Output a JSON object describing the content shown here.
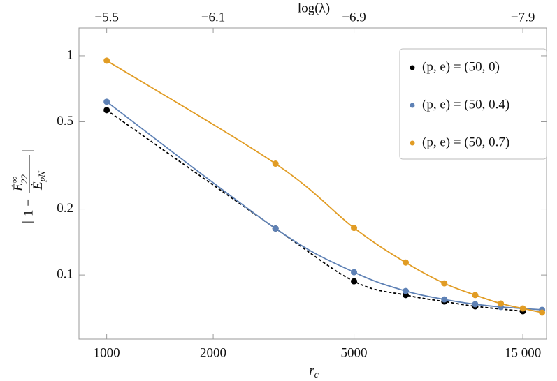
{
  "chart_data": {
    "type": "line",
    "log_x": true,
    "log_y": true,
    "title_top": "log(λ)",
    "xlabel": {
      "base": "r",
      "sub": "c"
    },
    "ylabel": {
      "prefix": "1 −",
      "num_base": "Ė",
      "num_sup": "∞",
      "num_sub": "22",
      "den_base": "Ė",
      "den_sub": "pN"
    },
    "xlim": [
      835,
      17500
    ],
    "ylim": [
      0.051,
      1.34
    ],
    "xticks": [
      1000,
      2000,
      5000,
      {
        "value": 15000,
        "label": "15 000"
      }
    ],
    "x2ticks": [
      {
        "value": 1000,
        "label": "−5.5"
      },
      {
        "value": 2000,
        "label": "−6.1"
      },
      {
        "value": 5000,
        "label": "−6.9"
      },
      {
        "value": 15000,
        "label": "−7.9"
      }
    ],
    "yticks": [
      0.1,
      0.2,
      0.5,
      1
    ],
    "legend": "upper right",
    "series": [
      {
        "name": "(p, e) = (50, 0)",
        "color": "#000000",
        "dashed": true,
        "x": [
          1000,
          3000,
          5000,
          7000,
          9000,
          11000,
          15000
        ],
        "values": [
          0.565,
          0.163,
          0.0936,
          0.081,
          0.0757,
          0.072,
          0.0684
        ]
      },
      {
        "name": "(p, e) = (50, 0.4)",
        "color": "#5e81b5",
        "dashed": false,
        "x": [
          1000,
          3000,
          5000,
          7000,
          9000,
          11000,
          13000,
          17000
        ],
        "values": [
          0.617,
          0.163,
          0.103,
          0.0845,
          0.0774,
          0.0736,
          0.0715,
          0.0694
        ]
      },
      {
        "name": "(p, e) = (50, 0.7)",
        "color": "#e19c24",
        "dashed": false,
        "x": [
          1000,
          3000,
          5000,
          7000,
          9000,
          11000,
          13000,
          15000,
          17000
        ],
        "values": [
          0.95,
          0.322,
          0.164,
          0.114,
          0.0916,
          0.081,
          0.0741,
          0.0704,
          0.0674
        ]
      }
    ]
  }
}
